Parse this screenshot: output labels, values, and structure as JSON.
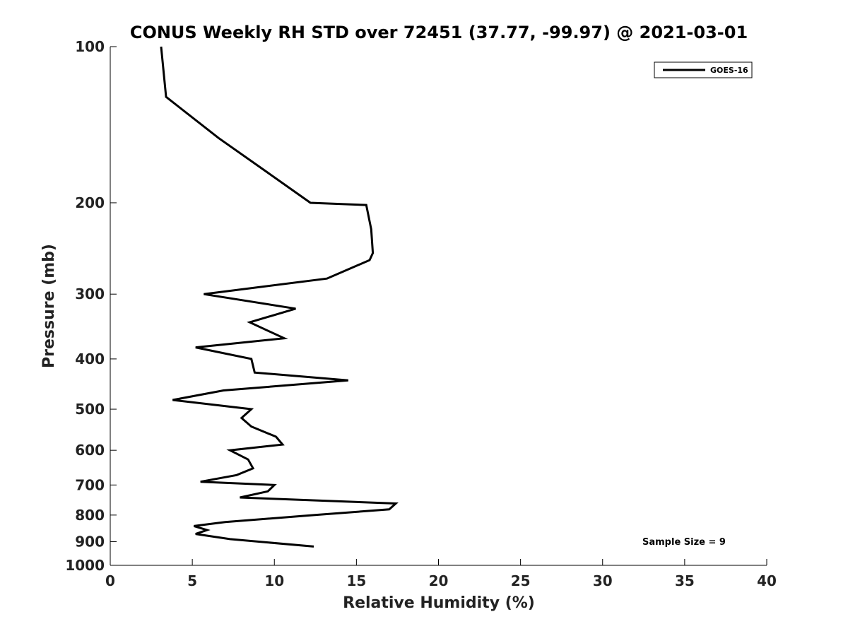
{
  "chart_data": {
    "type": "line",
    "title": "CONUS Weekly RH STD over 72451 (37.77, -99.97) @ 2021-03-01",
    "xlabel": "Relative Humidity (%)",
    "ylabel": "Pressure (mb)",
    "xlim": [
      0,
      40
    ],
    "ylim": [
      100,
      1000
    ],
    "y_scale": "log",
    "y_reversed": true,
    "x_ticks": [
      "0",
      "5",
      "10",
      "15",
      "20",
      "25",
      "30",
      "35",
      "40"
    ],
    "y_ticks": [
      "100",
      "200",
      "300",
      "400",
      "500",
      "600",
      "700",
      "800",
      "900",
      "1000"
    ],
    "legend_placement": "top-right",
    "grid": false,
    "annotation": "Sample Size = 9",
    "series": [
      {
        "name": "GOES-16",
        "color": "#000000",
        "points": [
          [
            3.1,
            100
          ],
          [
            3.4,
            125
          ],
          [
            6.6,
            150
          ],
          [
            9.6,
            175
          ],
          [
            12.2,
            200
          ],
          [
            15.6,
            202
          ],
          [
            15.9,
            225
          ],
          [
            16.0,
            250
          ],
          [
            15.8,
            258
          ],
          [
            13.2,
            280
          ],
          [
            5.7,
            300
          ],
          [
            11.3,
            320
          ],
          [
            8.5,
            340
          ],
          [
            10.6,
            365
          ],
          [
            5.2,
            380
          ],
          [
            8.6,
            400
          ],
          [
            8.8,
            425
          ],
          [
            14.5,
            440
          ],
          [
            6.9,
            460
          ],
          [
            3.8,
            480
          ],
          [
            8.6,
            500
          ],
          [
            8.0,
            520
          ],
          [
            8.6,
            540
          ],
          [
            10.1,
            565
          ],
          [
            10.5,
            585
          ],
          [
            7.3,
            600
          ],
          [
            8.4,
            625
          ],
          [
            8.7,
            650
          ],
          [
            7.7,
            670
          ],
          [
            5.5,
            690
          ],
          [
            10.0,
            700
          ],
          [
            9.6,
            720
          ],
          [
            7.9,
            740
          ],
          [
            17.4,
            760
          ],
          [
            17.0,
            780
          ],
          [
            12.4,
            800
          ],
          [
            7.0,
            825
          ],
          [
            5.1,
            840
          ],
          [
            5.9,
            855
          ],
          [
            5.2,
            870
          ],
          [
            7.3,
            890
          ],
          [
            12.4,
            920
          ]
        ]
      }
    ]
  }
}
